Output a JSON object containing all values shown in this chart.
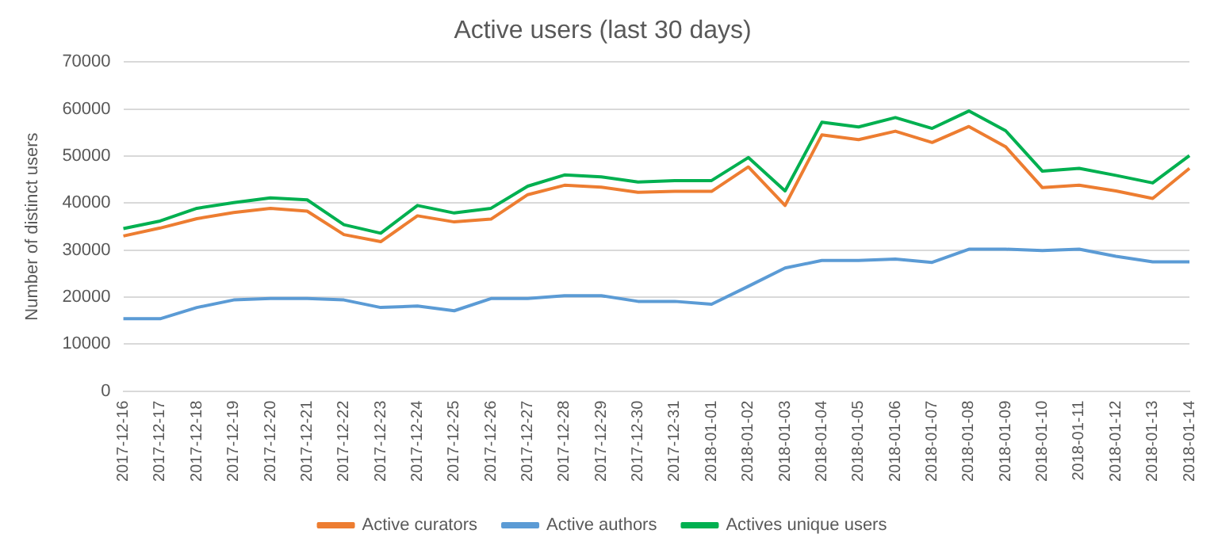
{
  "chart_data": {
    "type": "line",
    "title": "Active users (last 30 days)",
    "ylabel": "Number of distinct users",
    "categories": [
      "2017-12-16",
      "2017-12-17",
      "2017-12-18",
      "2017-12-19",
      "2017-12-20",
      "2017-12-21",
      "2017-12-22",
      "2017-12-23",
      "2017-12-24",
      "2017-12-25",
      "2017-12-26",
      "2017-12-27",
      "2017-12-28",
      "2017-12-29",
      "2017-12-30",
      "2017-12-31",
      "2018-01-01",
      "2018-01-02",
      "2018-01-03",
      "2018-01-04",
      "2018-01-05",
      "2018-01-06",
      "2018-01-07",
      "2018-01-08",
      "2018-01-09",
      "2018-01-10",
      "2018-01-11",
      "2018-01-12",
      "2018-01-13",
      "2018-01-14"
    ],
    "series": [
      {
        "name": "Active curators",
        "color": "#ed7d31",
        "values": [
          33000,
          34700,
          36700,
          38000,
          38900,
          38300,
          33300,
          31800,
          37300,
          36000,
          36600,
          41800,
          43800,
          43400,
          42300,
          42500,
          42500,
          47700,
          39500,
          54500,
          53500,
          55300,
          52900,
          56300,
          52000,
          43300,
          43800,
          42600,
          41000,
          47400
        ]
      },
      {
        "name": "Active authors",
        "color": "#5b9bd5",
        "values": [
          15400,
          15400,
          17800,
          19400,
          19700,
          19700,
          19400,
          17800,
          18100,
          17100,
          19700,
          19700,
          20300,
          20300,
          19100,
          19100,
          18500,
          22300,
          26200,
          27800,
          27800,
          28100,
          27400,
          30200,
          30200,
          29900,
          30200,
          28700,
          27500,
          27500
        ]
      },
      {
        "name": "Actives unique users",
        "color": "#00b050",
        "values": [
          34600,
          36200,
          38900,
          40100,
          41100,
          40700,
          35400,
          33600,
          39500,
          37900,
          38900,
          43600,
          46000,
          45600,
          44500,
          44800,
          44800,
          49700,
          42600,
          57200,
          56200,
          58200,
          55900,
          59600,
          55400,
          46800,
          47400,
          45900,
          44300,
          50100
        ]
      }
    ],
    "ylim": [
      0,
      70000
    ],
    "yticks": [
      0,
      10000,
      20000,
      30000,
      40000,
      50000,
      60000,
      70000
    ],
    "grid": "y",
    "legend": "bottom",
    "marker": "none",
    "line_style": "solid"
  }
}
